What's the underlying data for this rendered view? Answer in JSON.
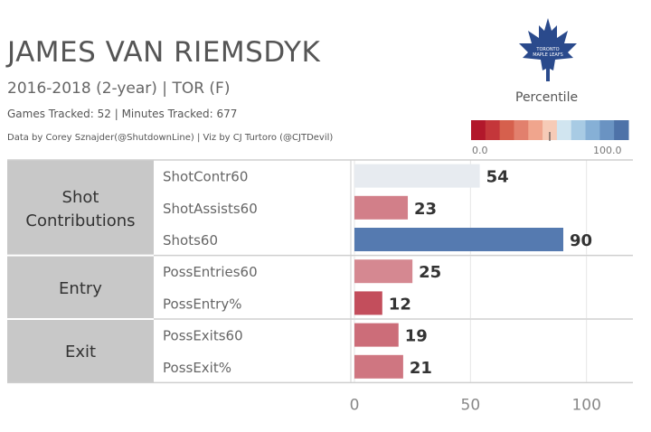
{
  "header": {
    "title": "JAMES VAN RIEMSDYK",
    "subtitle": "2016-2018 (2-year) | TOR (F)",
    "tracked": "Games Tracked: 52  | Minutes Tracked: 677",
    "credits": "Data by Corey Sznajder(@ShutdownLine) | Viz by CJ Turtoro (@CJTDevil)"
  },
  "logo": {
    "icon": "maple-leaf-icon",
    "text": "TORONTO MAPLE LEAFS",
    "color": "#2a4a8c"
  },
  "legend": {
    "title": "Percentile",
    "min_label": "0.0",
    "max_label": "100.0",
    "colors": [
      "#b2182b",
      "#c4363a",
      "#d6604d",
      "#e2806d",
      "#f0a58d",
      "#f6cbb7",
      "#d1e5f0",
      "#a8cbe4",
      "#86b0d6",
      "#6a93c2",
      "#4e72a8"
    ]
  },
  "chart_data": {
    "type": "bar",
    "orientation": "horizontal",
    "groups": [
      {
        "name": "Shot Contributions",
        "metrics": [
          "ShotContr60",
          "ShotAssists60",
          "Shots60"
        ]
      },
      {
        "name": "Entry",
        "metrics": [
          "PossEntries60",
          "PossEntry%"
        ]
      },
      {
        "name": "Exit",
        "metrics": [
          "PossExits60",
          "PossExit%"
        ]
      }
    ],
    "categories": [
      "ShotContr60",
      "ShotAssists60",
      "Shots60",
      "PossEntries60",
      "PossEntry%",
      "PossExits60",
      "PossExit%"
    ],
    "values": [
      54,
      23,
      90,
      25,
      12,
      19,
      21
    ],
    "xlim": [
      0,
      120
    ],
    "xticks": [
      0,
      50,
      100
    ],
    "color_scale": {
      "low": "#b2182b",
      "mid": "#f7f7f7",
      "high": "#2c5b9e",
      "domain": [
        0,
        100
      ]
    }
  }
}
